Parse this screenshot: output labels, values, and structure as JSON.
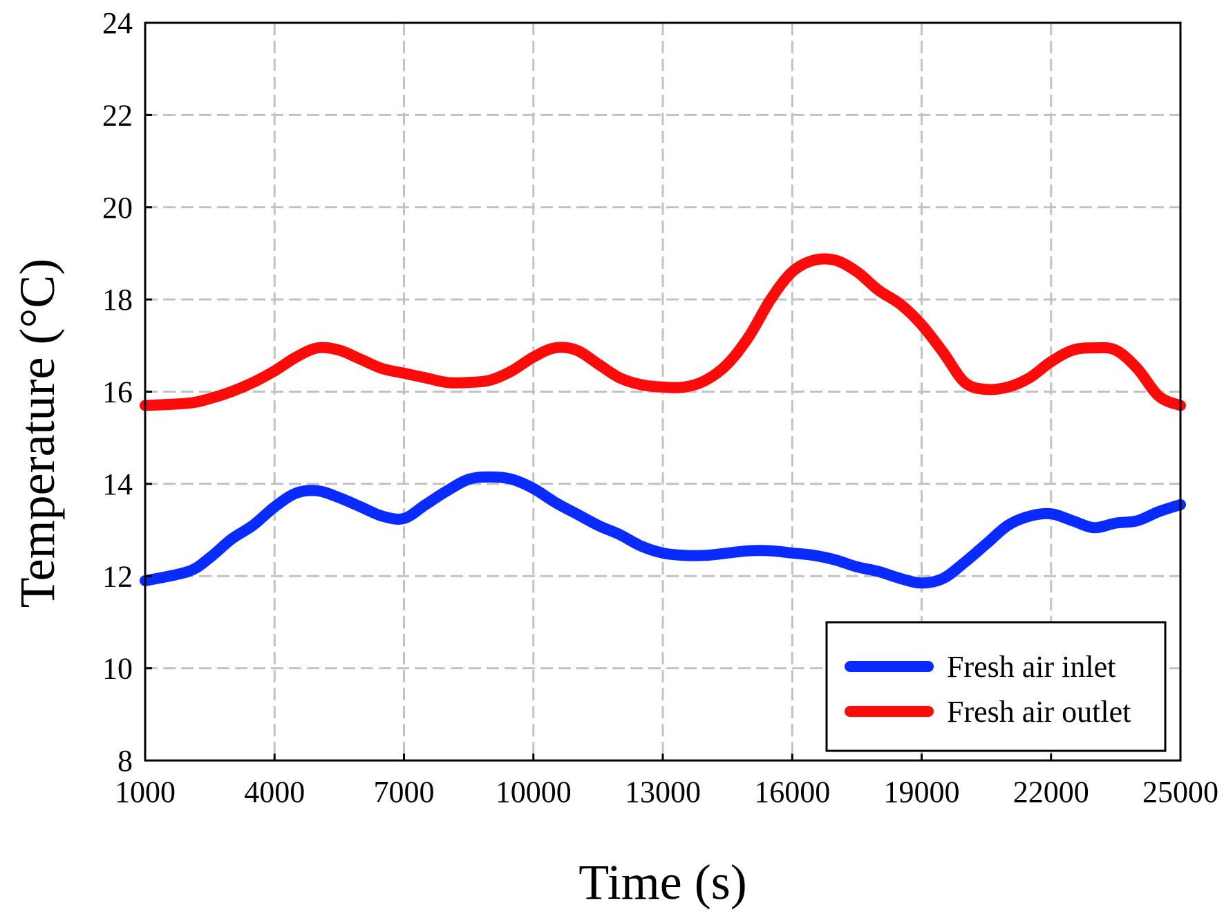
{
  "chart_data": {
    "type": "line",
    "title": "",
    "xlabel": "Time (s)",
    "ylabel": "Temperature (°C)",
    "xlim": [
      1000,
      25000
    ],
    "ylim": [
      8,
      24
    ],
    "x_ticks": [
      1000,
      4000,
      7000,
      10000,
      13000,
      16000,
      19000,
      22000,
      25000
    ],
    "y_ticks": [
      8,
      10,
      12,
      14,
      16,
      18,
      20,
      22,
      24
    ],
    "grid": true,
    "legend_position": "bottom-right",
    "series": [
      {
        "name": "Fresh air inlet",
        "color": "#0a2bff",
        "x": [
          1000,
          2000,
          2500,
          3000,
          3500,
          4000,
          4500,
          5000,
          5500,
          6000,
          6500,
          7000,
          7500,
          8000,
          8500,
          9000,
          9500,
          10000,
          10500,
          11000,
          11500,
          12000,
          12500,
          13000,
          13500,
          14000,
          14500,
          15000,
          15500,
          16000,
          16500,
          17000,
          17500,
          18000,
          18500,
          19000,
          19500,
          20000,
          20500,
          21000,
          21500,
          22000,
          22500,
          23000,
          23500,
          24000,
          24500,
          25000
        ],
        "y": [
          11.9,
          12.1,
          12.4,
          12.8,
          13.1,
          13.5,
          13.8,
          13.85,
          13.7,
          13.5,
          13.3,
          13.25,
          13.55,
          13.85,
          14.1,
          14.15,
          14.1,
          13.9,
          13.6,
          13.35,
          13.1,
          12.9,
          12.65,
          12.5,
          12.45,
          12.45,
          12.5,
          12.55,
          12.55,
          12.5,
          12.45,
          12.35,
          12.2,
          12.1,
          11.95,
          11.85,
          11.95,
          12.3,
          12.7,
          13.1,
          13.3,
          13.35,
          13.2,
          13.05,
          13.15,
          13.2,
          13.4,
          13.55
        ]
      },
      {
        "name": "Fresh air outlet",
        "color": "#ff0a0a",
        "x": [
          1000,
          2000,
          2500,
          3000,
          3500,
          4000,
          4500,
          5000,
          5500,
          6000,
          6500,
          7000,
          7500,
          8000,
          8500,
          9000,
          9500,
          10000,
          10500,
          11000,
          11500,
          12000,
          12500,
          13000,
          13500,
          14000,
          14500,
          15000,
          15500,
          16000,
          16500,
          17000,
          17500,
          18000,
          18500,
          19000,
          19500,
          20000,
          20500,
          21000,
          21500,
          22000,
          22500,
          23000,
          23500,
          24000,
          24500,
          25000
        ],
        "y": [
          15.7,
          15.75,
          15.85,
          16.0,
          16.2,
          16.45,
          16.75,
          16.95,
          16.9,
          16.7,
          16.5,
          16.4,
          16.3,
          16.2,
          16.2,
          16.25,
          16.45,
          16.75,
          16.95,
          16.9,
          16.6,
          16.3,
          16.15,
          16.1,
          16.1,
          16.25,
          16.6,
          17.2,
          18.0,
          18.6,
          18.85,
          18.85,
          18.6,
          18.2,
          17.9,
          17.45,
          16.85,
          16.2,
          16.05,
          16.1,
          16.3,
          16.65,
          16.9,
          16.95,
          16.9,
          16.5,
          15.9,
          15.7
        ]
      }
    ]
  }
}
